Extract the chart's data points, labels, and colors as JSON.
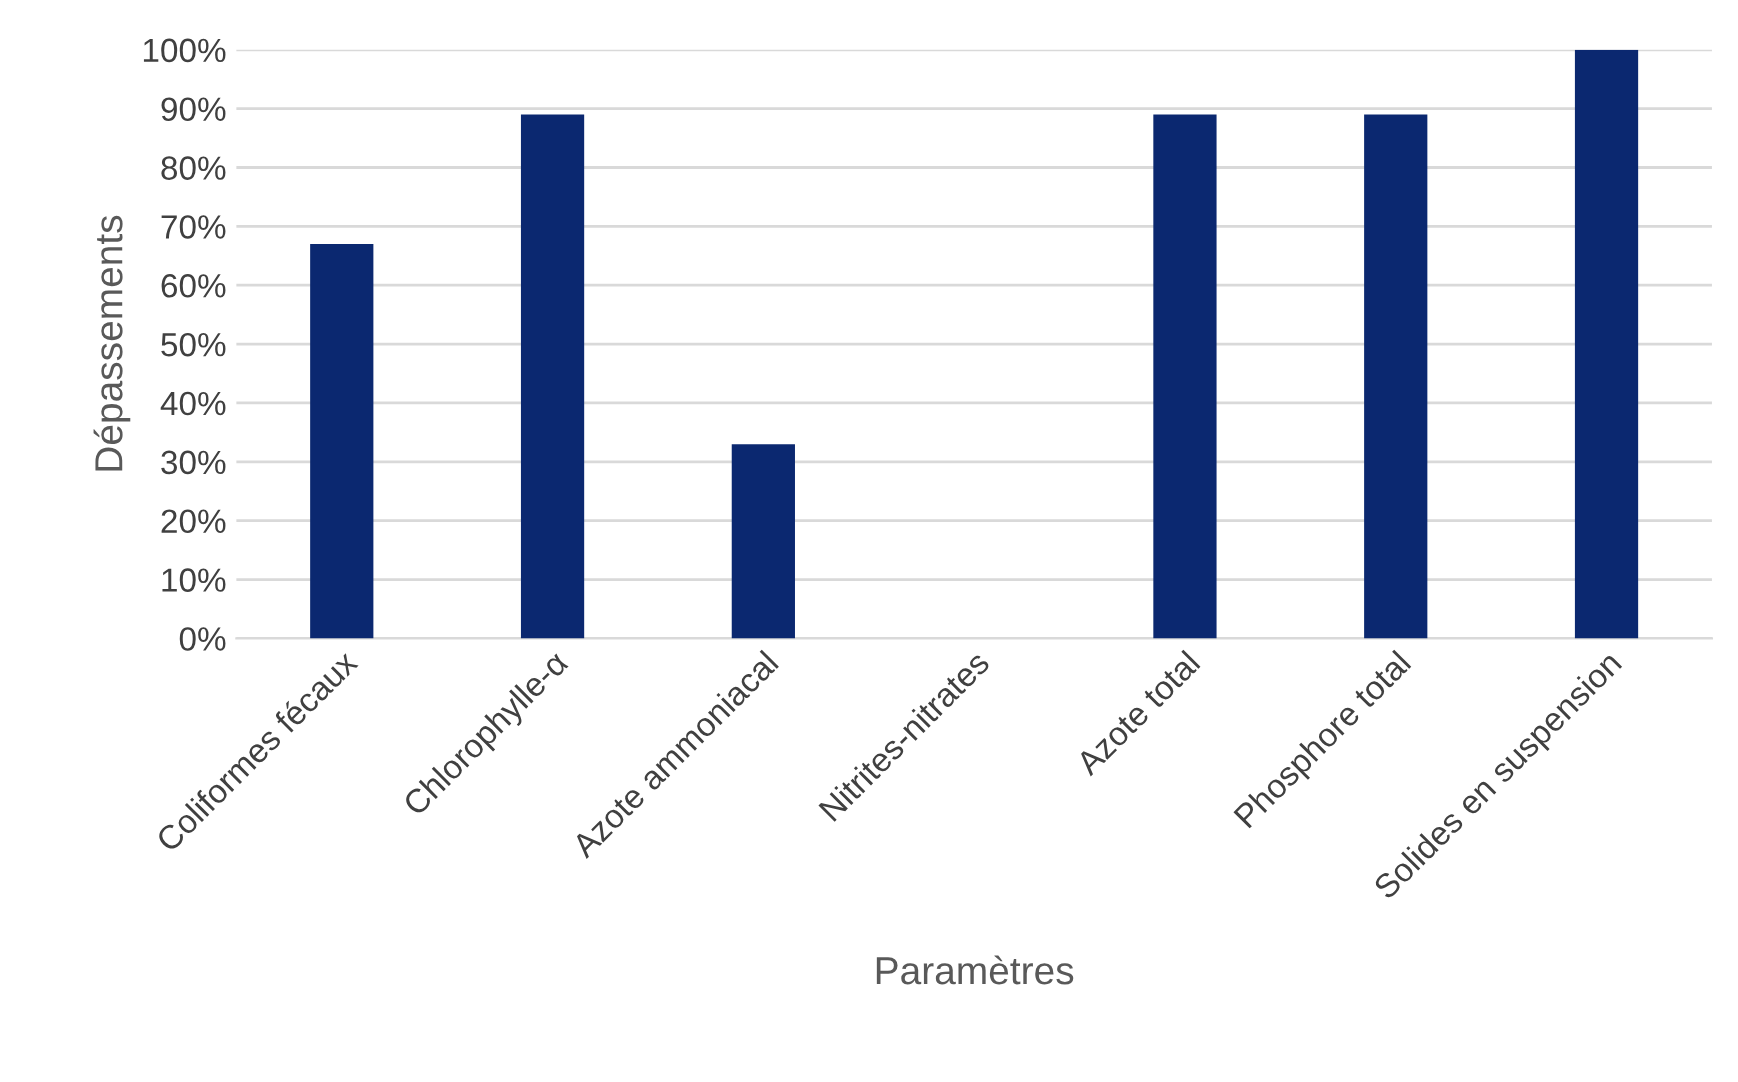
{
  "chart_data": {
    "type": "bar",
    "xlabel": "Paramètres",
    "ylabel": "Dépassements",
    "categories": [
      "Coliformes fécaux",
      "Chlorophylle-α",
      "Azote ammoniacal",
      "Nitrites-nitrates",
      "Azote total",
      "Phosphore total",
      "Solides en suspension"
    ],
    "values": [
      67,
      89,
      33,
      0,
      89,
      89,
      100
    ],
    "color": "#0b2870",
    "ylim": [
      0,
      100
    ],
    "yticks": [
      {
        "value": 0,
        "label": "0%"
      },
      {
        "value": 10,
        "label": "10%"
      },
      {
        "value": 20,
        "label": "20%"
      },
      {
        "value": 30,
        "label": "30%"
      },
      {
        "value": 40,
        "label": "40%"
      },
      {
        "value": 50,
        "label": "50%"
      },
      {
        "value": 60,
        "label": "60%"
      },
      {
        "value": 70,
        "label": "70%"
      },
      {
        "value": 80,
        "label": "80%"
      },
      {
        "value": 90,
        "label": "90%"
      },
      {
        "value": 100,
        "label": "100%"
      }
    ],
    "grid": "y",
    "legend": false
  }
}
